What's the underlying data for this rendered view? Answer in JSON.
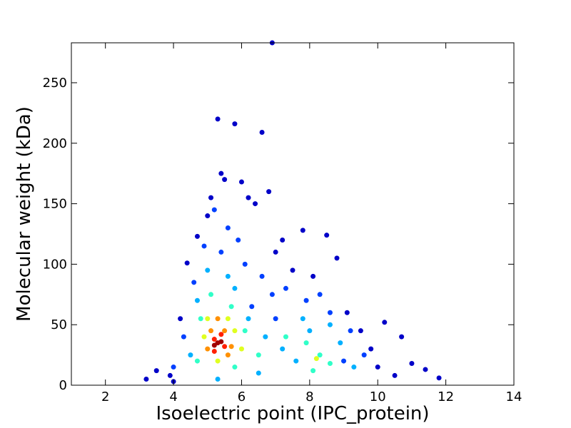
{
  "chart_data": {
    "type": "scatter",
    "x_label": "Isoelectric point (IPC_protein)",
    "y_label": "Molecular weight (kDa)",
    "xlim": [
      1,
      14
    ],
    "ylim": [
      0,
      283
    ],
    "xticks": [
      2,
      4,
      6,
      8,
      10,
      12,
      14
    ],
    "yticks": [
      0,
      50,
      100,
      150,
      200,
      250
    ],
    "series": [
      {
        "color": "#0000c8",
        "x": [
          5.3,
          5.8,
          6.6,
          6.9,
          5.4,
          5.5,
          6.0,
          5.1,
          6.4,
          6.8,
          4.7,
          7.2,
          7.8,
          8.5,
          9.5,
          10.2,
          10.7,
          11.0,
          11.4,
          11.8,
          3.2,
          3.5,
          3.9,
          4.0,
          8.8,
          9.1,
          7.5,
          4.4,
          10.5,
          6.2,
          5.0,
          8.1,
          7.0,
          9.8,
          10.0,
          4.2
        ],
        "values": [
          220,
          216,
          209,
          283,
          175,
          170,
          168,
          155,
          150,
          160,
          123,
          120,
          128,
          124,
          45,
          52,
          40,
          18,
          13,
          6,
          5,
          12,
          8,
          3,
          105,
          60,
          95,
          101,
          8,
          155,
          140,
          90,
          110,
          30,
          15,
          55
        ]
      },
      {
        "color": "#0040ff",
        "x": [
          5.2,
          5.6,
          5.9,
          4.9,
          6.1,
          6.6,
          7.3,
          7.9,
          8.6,
          9.2,
          9.6,
          4.6,
          4.3,
          4.0,
          7.0,
          6.9,
          8.3,
          9.0,
          5.4,
          6.3
        ],
        "values": [
          145,
          130,
          120,
          115,
          100,
          90,
          80,
          70,
          60,
          45,
          25,
          85,
          40,
          15,
          55,
          75,
          75,
          20,
          110,
          65
        ]
      },
      {
        "color": "#00b0ff",
        "x": [
          5.0,
          5.6,
          5.8,
          4.7,
          6.2,
          6.7,
          7.2,
          7.6,
          8.0,
          8.9,
          9.3,
          4.5,
          7.8,
          8.6,
          5.3,
          6.5
        ],
        "values": [
          95,
          90,
          80,
          70,
          55,
          40,
          30,
          20,
          45,
          35,
          15,
          25,
          55,
          50,
          5,
          10
        ]
      },
      {
        "color": "#30ffc8",
        "x": [
          5.1,
          5.7,
          4.8,
          6.1,
          7.9,
          8.3,
          8.6,
          8.1,
          6.5,
          4.7,
          7.3,
          5.8
        ],
        "values": [
          75,
          65,
          55,
          45,
          35,
          25,
          18,
          12,
          25,
          20,
          40,
          15
        ]
      },
      {
        "color": "#e0ff20",
        "x": [
          5.0,
          5.6,
          4.9,
          6.0,
          5.3,
          5.8,
          8.2
        ],
        "values": [
          55,
          55,
          40,
          30,
          20,
          45,
          22
        ]
      },
      {
        "color": "#ff9000",
        "x": [
          5.1,
          5.5,
          5.0,
          5.7,
          5.3,
          5.6
        ],
        "values": [
          45,
          45,
          30,
          32,
          55,
          25
        ]
      },
      {
        "color": "#ff2000",
        "x": [
          5.2,
          5.4,
          5.2,
          5.5
        ],
        "values": [
          38,
          42,
          28,
          32
        ]
      },
      {
        "color": "#a00000",
        "x": [
          5.3,
          5.4,
          5.2
        ],
        "values": [
          35,
          36,
          33
        ]
      }
    ]
  }
}
